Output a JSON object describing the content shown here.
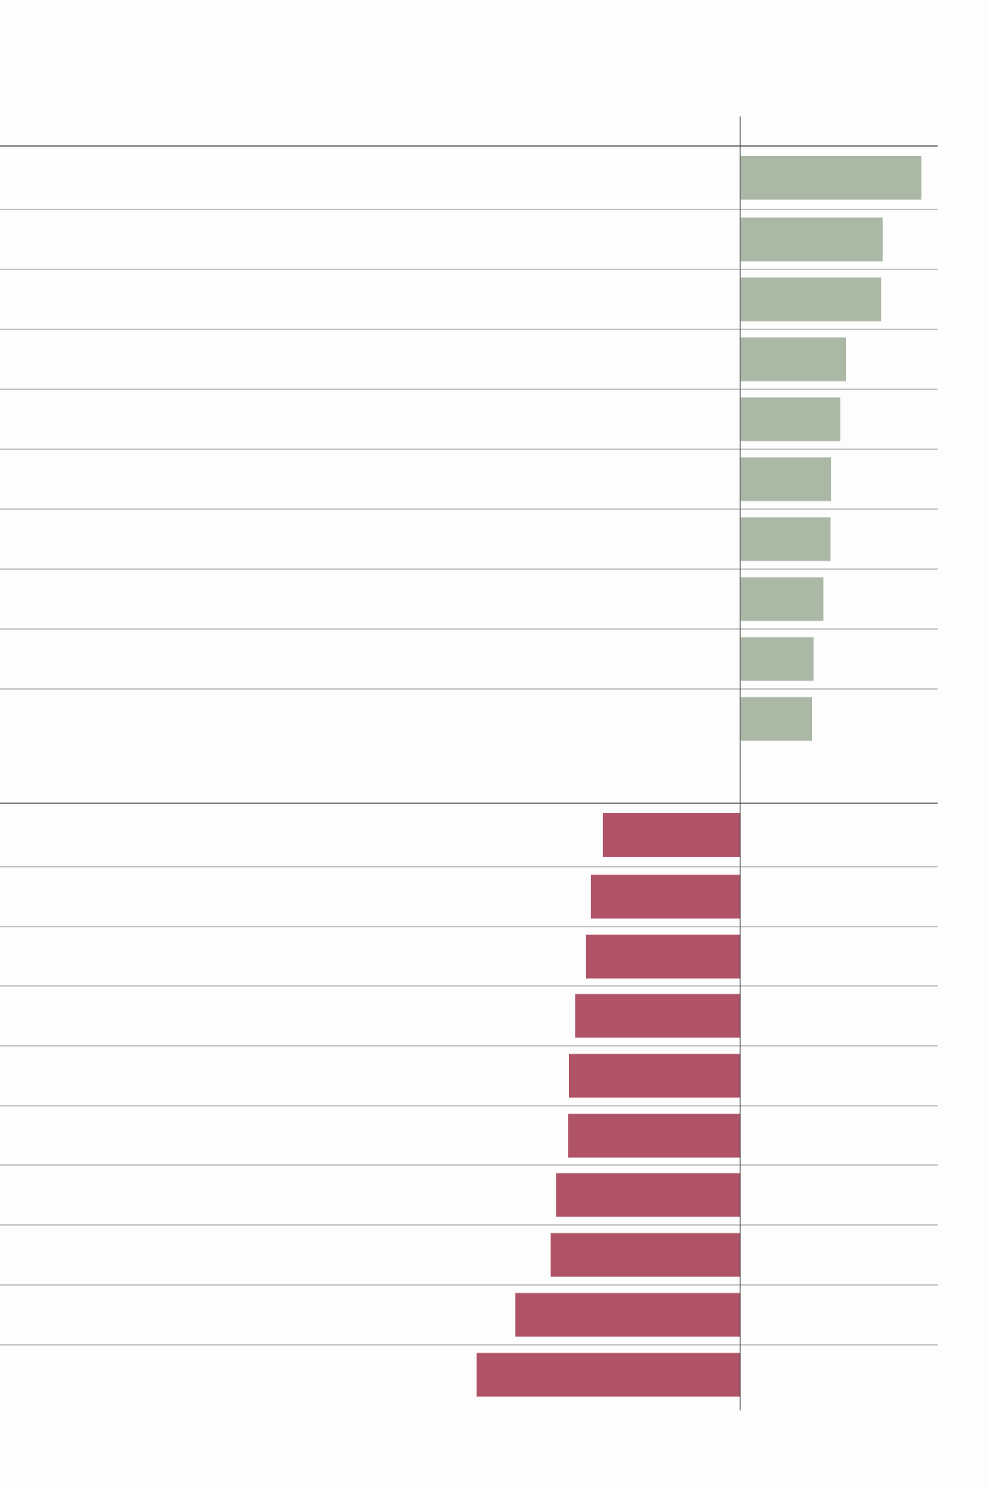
{
  "chart_data": {
    "type": "bar",
    "orientation": "horizontal",
    "title": "",
    "xlabel": "",
    "ylabel": "",
    "grid": false,
    "colors": {
      "positive": "#abb8a6",
      "negative": "#b05366",
      "baseline": "#555555",
      "row_divider": "#8a8a8a",
      "group_divider": "#555555"
    },
    "series": [
      {
        "values": [
          257,
          202,
          200,
          150,
          142,
          129,
          128,
          118,
          104,
          102,
          -195,
          -212,
          -219,
          -234,
          -243,
          -244,
          -261,
          -269,
          -319,
          -374
        ]
      }
    ],
    "xlim": [
      -400,
      280
    ]
  }
}
